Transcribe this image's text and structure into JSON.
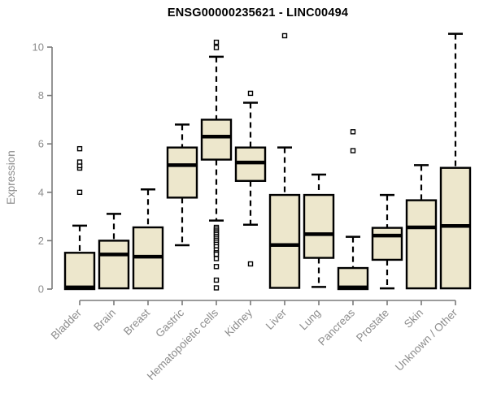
{
  "chart_data": {
    "type": "boxplot",
    "title": "ENSG00000235621 - LINC00494",
    "ylabel": "Expression",
    "xlabel": "",
    "ylim": [
      0,
      10.9
    ],
    "yticks": [
      0,
      2,
      4,
      6,
      8,
      10
    ],
    "grid": false,
    "legend": false,
    "colors": {
      "box_fill": "#EDE7CC",
      "box_border": "#000000",
      "median": "#000000",
      "axis": "#7a7a7a",
      "text": "#8c8c8c",
      "title": "#000000",
      "outlier_fill": "#ffffff",
      "background": "#ffffff"
    },
    "categories": [
      "Bladder",
      "Brain",
      "Breast",
      "Gastric",
      "Hematopoietic cells",
      "Kidney",
      "Liver",
      "Lung",
      "Pancreas",
      "Prostate",
      "Skin",
      "Unknown / Other"
    ],
    "series": [
      {
        "name": "Bladder",
        "low": 0,
        "q1": 0,
        "median": 0.07,
        "q3": 1.5,
        "high": 2.62,
        "outliers": [
          4.0,
          5.0,
          5.1,
          5.25,
          5.8
        ]
      },
      {
        "name": "Brain",
        "low": 0.03,
        "q1": 0.03,
        "median": 1.43,
        "q3": 2.0,
        "high": 3.11,
        "outliers": []
      },
      {
        "name": "Breast",
        "low": 0.03,
        "q1": 0.03,
        "median": 1.34,
        "q3": 2.55,
        "high": 4.12,
        "outliers": []
      },
      {
        "name": "Gastric",
        "low": 1.81,
        "q1": 3.78,
        "median": 5.12,
        "q3": 5.85,
        "high": 6.8,
        "outliers": []
      },
      {
        "name": "Hematopoietic cells",
        "low": 2.83,
        "q1": 5.35,
        "median": 6.3,
        "q3": 7.0,
        "high": 9.6,
        "outliers": [
          10.2,
          9.98,
          2.55,
          2.48,
          2.4,
          2.33,
          2.26,
          2.18,
          2.1,
          2.02,
          1.94,
          1.85,
          1.75,
          1.62,
          1.5,
          1.44,
          1.26,
          0.93,
          0.37,
          0.05
        ]
      },
      {
        "name": "Kidney",
        "low": 2.66,
        "q1": 4.47,
        "median": 5.23,
        "q3": 5.85,
        "high": 7.7,
        "outliers": [
          8.09,
          1.04
        ]
      },
      {
        "name": "Liver",
        "low": 0.05,
        "q1": 0.05,
        "median": 1.82,
        "q3": 3.89,
        "high": 5.85,
        "outliers": [
          10.47
        ]
      },
      {
        "name": "Lung",
        "low": 0.09,
        "q1": 1.29,
        "median": 2.27,
        "q3": 3.89,
        "high": 4.73,
        "outliers": []
      },
      {
        "name": "Pancreas",
        "low": 0,
        "q1": 0,
        "median": 0.07,
        "q3": 0.87,
        "high": 2.16,
        "outliers": [
          6.5,
          5.72
        ]
      },
      {
        "name": "Prostate",
        "low": 0.03,
        "q1": 1.21,
        "median": 2.21,
        "q3": 2.53,
        "high": 3.89,
        "outliers": []
      },
      {
        "name": "Skin",
        "low": 0.03,
        "q1": 0.03,
        "median": 2.55,
        "q3": 3.67,
        "high": 5.12,
        "outliers": []
      },
      {
        "name": "Unknown / Other",
        "low": 0.03,
        "q1": 0.03,
        "median": 2.61,
        "q3": 5.01,
        "high": 10.55,
        "outliers": []
      }
    ]
  }
}
